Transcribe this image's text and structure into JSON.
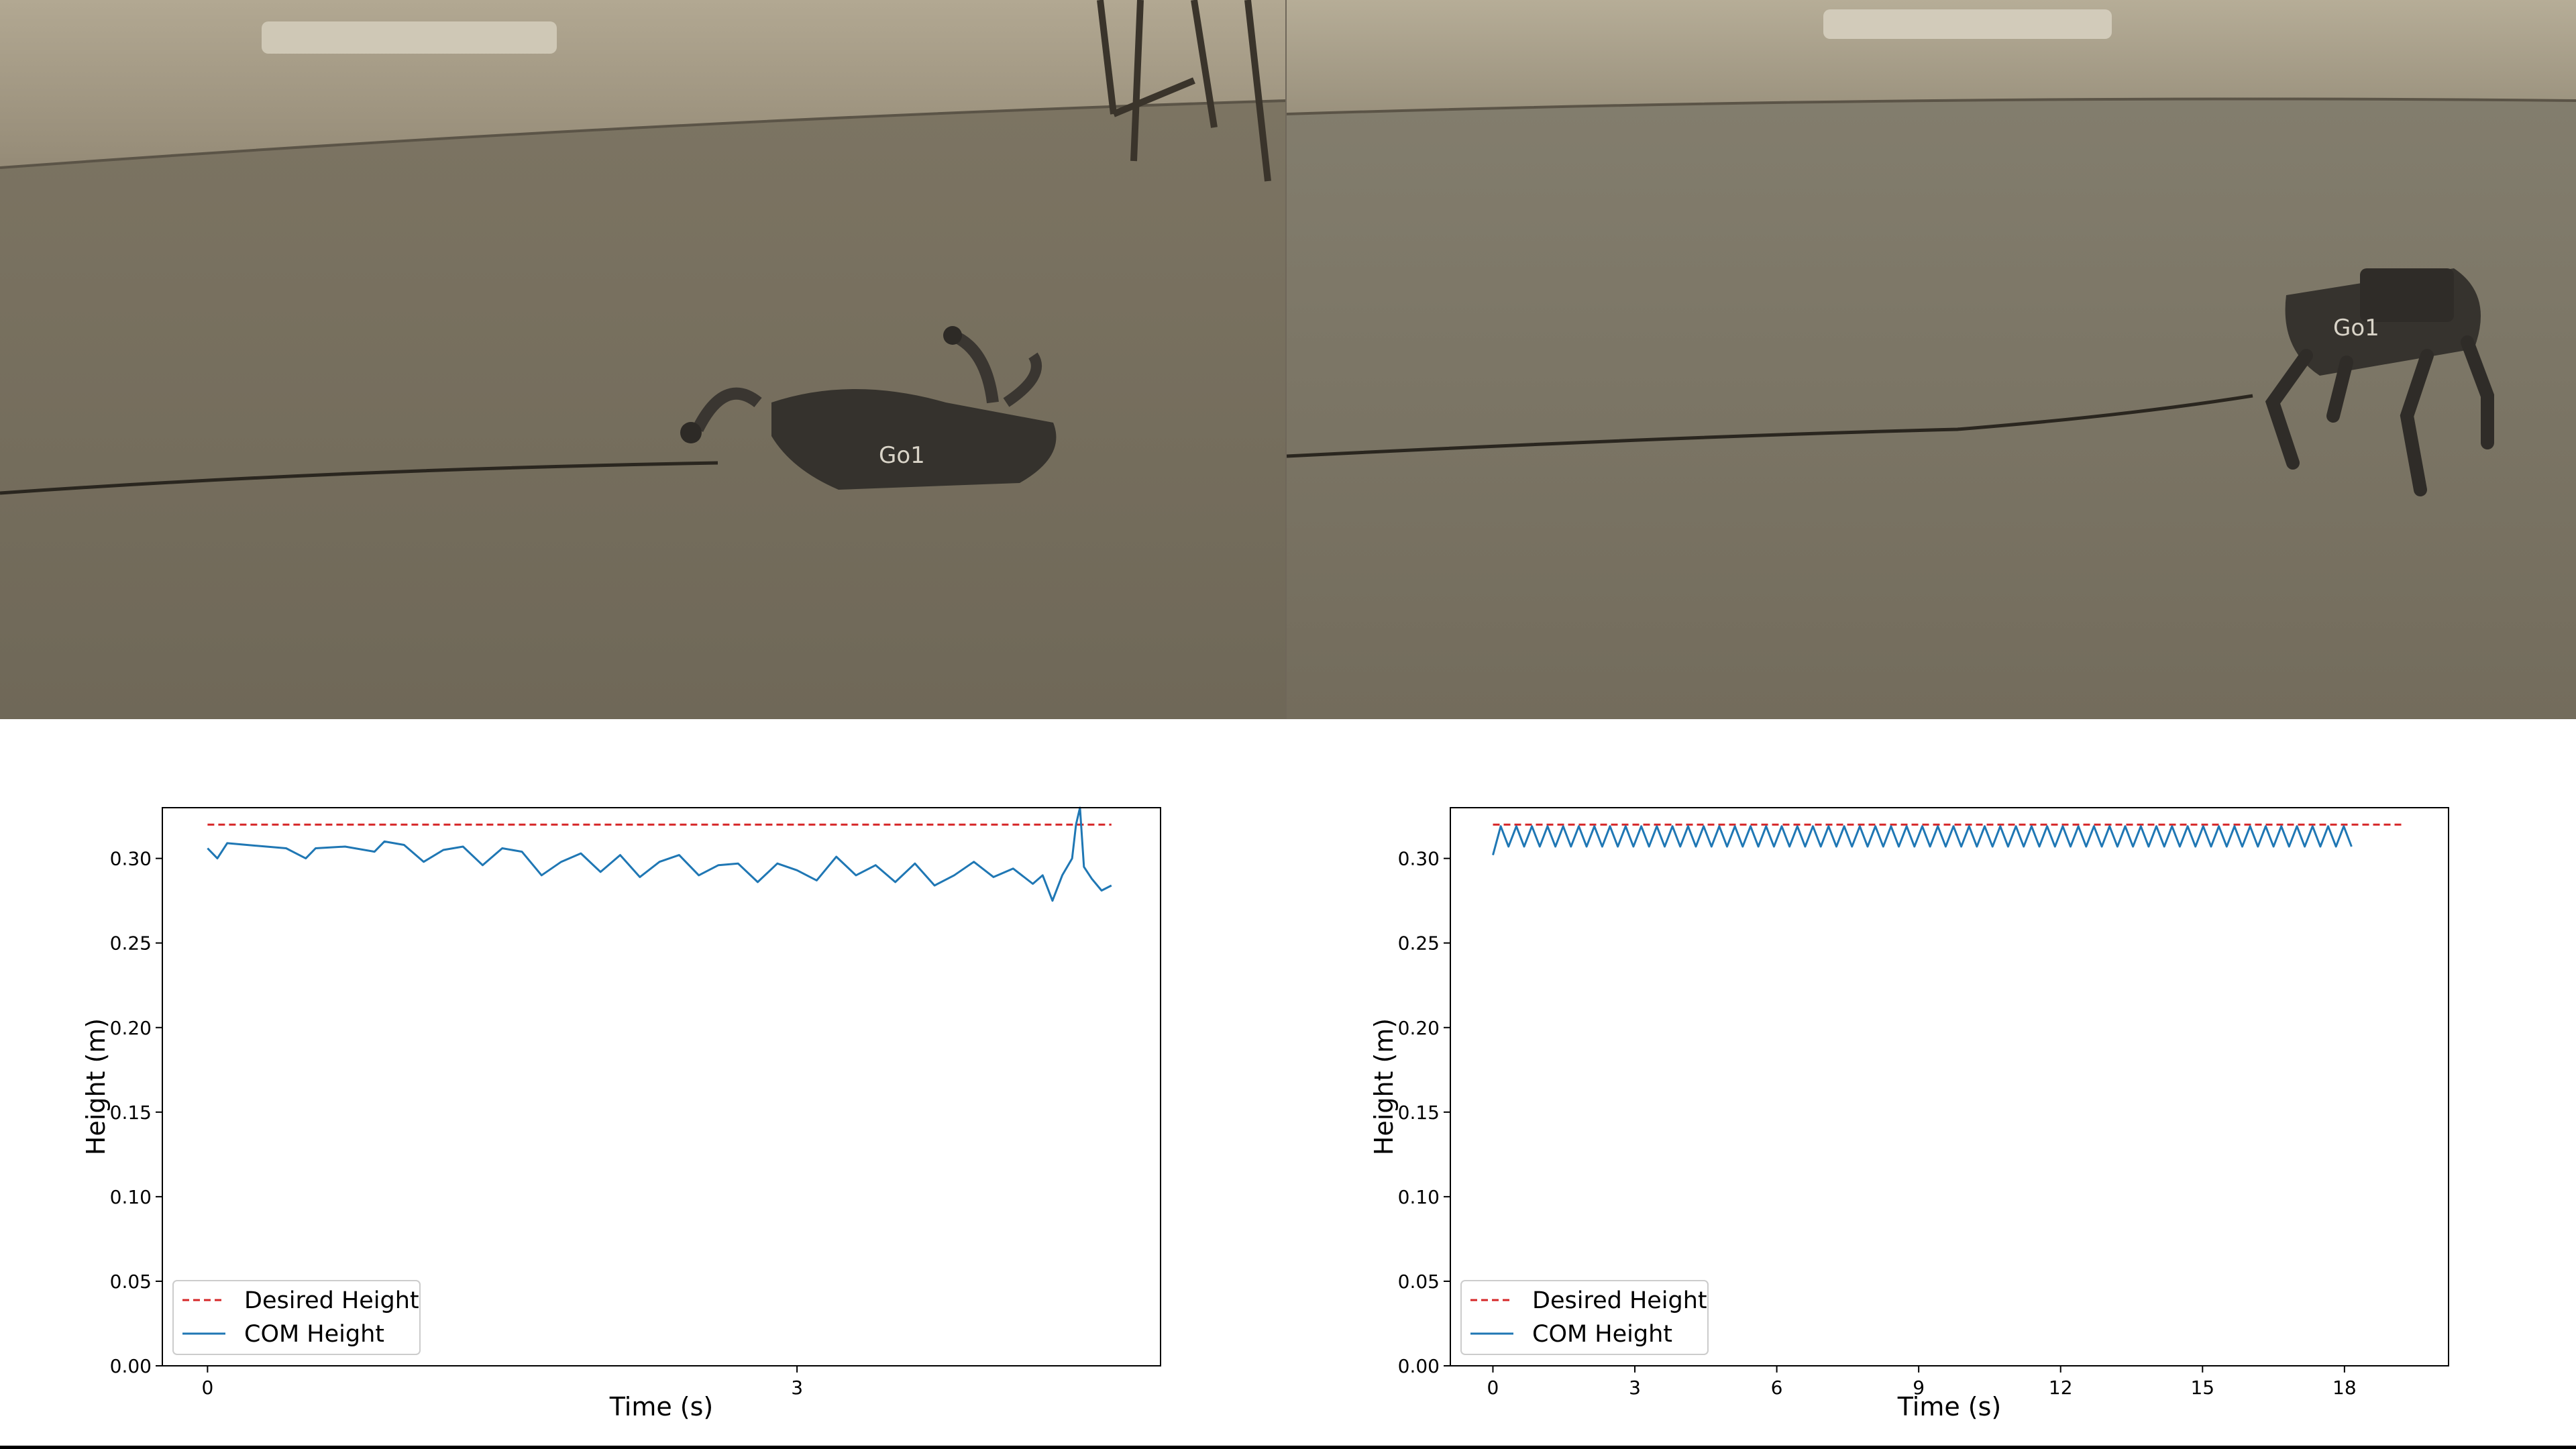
{
  "photos": [
    {
      "name": "fallen-robot-photo",
      "label_text": "Go1"
    },
    {
      "name": "standing-robot-photo",
      "label_text": "Go1"
    }
  ],
  "colors": {
    "desired": "#d62728",
    "com": "#1f77b4",
    "floor": "#847b6a",
    "wall": "#a59c88"
  },
  "chart_data": [
    {
      "type": "line",
      "xlabel": "Time (s)",
      "ylabel": "Height (m)",
      "xlim": [
        -0.23,
        4.85
      ],
      "ylim": [
        0.0,
        0.33
      ],
      "xticks": [
        0,
        3
      ],
      "yticks": [
        0.0,
        0.05,
        0.1,
        0.15,
        0.2,
        0.25,
        0.3
      ],
      "ytick_labels": [
        "0.00",
        "0.05",
        "0.10",
        "0.15",
        "0.20",
        "0.25",
        "0.30"
      ],
      "grid": false,
      "legend_position": "lower-left",
      "series": [
        {
          "name": "Desired Height",
          "style": "dashed",
          "color": "#d62728",
          "x": [
            0,
            4.6
          ],
          "y": [
            0.32,
            0.32
          ]
        },
        {
          "name": "COM Height",
          "style": "solid",
          "color": "#1f77b4",
          "x": [
            0.0,
            0.05,
            0.1,
            0.2,
            0.3,
            0.4,
            0.5,
            0.55,
            0.7,
            0.85,
            0.9,
            1.0,
            1.1,
            1.2,
            1.3,
            1.4,
            1.5,
            1.6,
            1.7,
            1.8,
            1.9,
            2.0,
            2.1,
            2.2,
            2.3,
            2.4,
            2.5,
            2.6,
            2.7,
            2.8,
            2.9,
            3.0,
            3.1,
            3.2,
            3.3,
            3.4,
            3.5,
            3.6,
            3.7,
            3.8,
            3.9,
            4.0,
            4.1,
            4.2,
            4.25,
            4.3,
            4.35,
            4.4,
            4.42,
            4.44,
            4.46,
            4.5,
            4.55,
            4.6
          ],
          "y": [
            0.306,
            0.3,
            0.309,
            0.308,
            0.307,
            0.306,
            0.3,
            0.306,
            0.307,
            0.304,
            0.31,
            0.308,
            0.298,
            0.305,
            0.307,
            0.296,
            0.306,
            0.304,
            0.29,
            0.298,
            0.303,
            0.292,
            0.302,
            0.289,
            0.298,
            0.302,
            0.29,
            0.296,
            0.297,
            0.286,
            0.297,
            0.293,
            0.287,
            0.301,
            0.29,
            0.296,
            0.286,
            0.297,
            0.284,
            0.29,
            0.298,
            0.289,
            0.294,
            0.285,
            0.29,
            0.275,
            0.29,
            0.3,
            0.32,
            0.33,
            0.295,
            0.288,
            0.281,
            0.284
          ]
        }
      ]
    },
    {
      "type": "line",
      "xlabel": "Time (s)",
      "ylabel": "Height (m)",
      "xlim": [
        -0.9,
        20.2
      ],
      "ylim": [
        0.0,
        0.33
      ],
      "xticks": [
        0,
        3,
        6,
        9,
        12,
        15,
        18
      ],
      "yticks": [
        0.0,
        0.05,
        0.1,
        0.15,
        0.2,
        0.25,
        0.3
      ],
      "ytick_labels": [
        "0.00",
        "0.05",
        "0.10",
        "0.15",
        "0.20",
        "0.25",
        "0.30"
      ],
      "grid": false,
      "legend_position": "lower-left",
      "series": [
        {
          "name": "Desired Height",
          "style": "dashed",
          "color": "#d62728",
          "x": [
            0,
            19.2
          ],
          "y": [
            0.32,
            0.32
          ]
        },
        {
          "name": "COM Height",
          "style": "solid",
          "color": "#1f77b4",
          "oscillation": {
            "start": 0.0,
            "end": 18.2,
            "period": 0.33,
            "peak": 0.319,
            "trough": 0.307,
            "first_trough": 0.302
          }
        }
      ]
    }
  ]
}
